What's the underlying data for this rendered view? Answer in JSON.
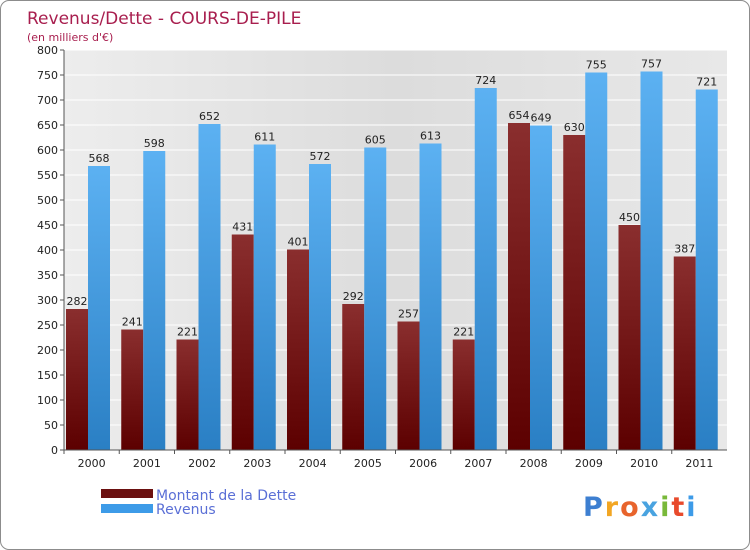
{
  "chart_data": {
    "type": "bar",
    "title": "Revenus/Dette - COURS-DE-PILE",
    "subtitle": "(en milliers d'€)",
    "categories": [
      "2000",
      "2001",
      "2002",
      "2003",
      "2004",
      "2005",
      "2006",
      "2007",
      "2008",
      "2009",
      "2010",
      "2011"
    ],
    "series": [
      {
        "name": "Montant de la Dette",
        "color": "#6b1010",
        "values": [
          282,
          241,
          221,
          431,
          401,
          292,
          257,
          221,
          654,
          630,
          450,
          387
        ]
      },
      {
        "name": "Revenus",
        "color": "#3d9be8",
        "values": [
          568,
          598,
          652,
          611,
          572,
          605,
          613,
          724,
          649,
          755,
          757,
          721
        ]
      }
    ],
    "ylim": [
      0,
      800
    ],
    "yticks": [
      0,
      50,
      100,
      150,
      200,
      250,
      300,
      350,
      400,
      450,
      500,
      550,
      600,
      650,
      700,
      750,
      800
    ],
    "grid": true,
    "legend": "bottom-left",
    "brand": {
      "letters": [
        "P",
        "r",
        "o",
        "x",
        "i",
        "t",
        "i"
      ],
      "colors": [
        "#3d7fd1",
        "#f2a623",
        "#e8642c",
        "#49a3e0",
        "#79b93a",
        "#e84a2c",
        "#3d9be8"
      ]
    }
  }
}
